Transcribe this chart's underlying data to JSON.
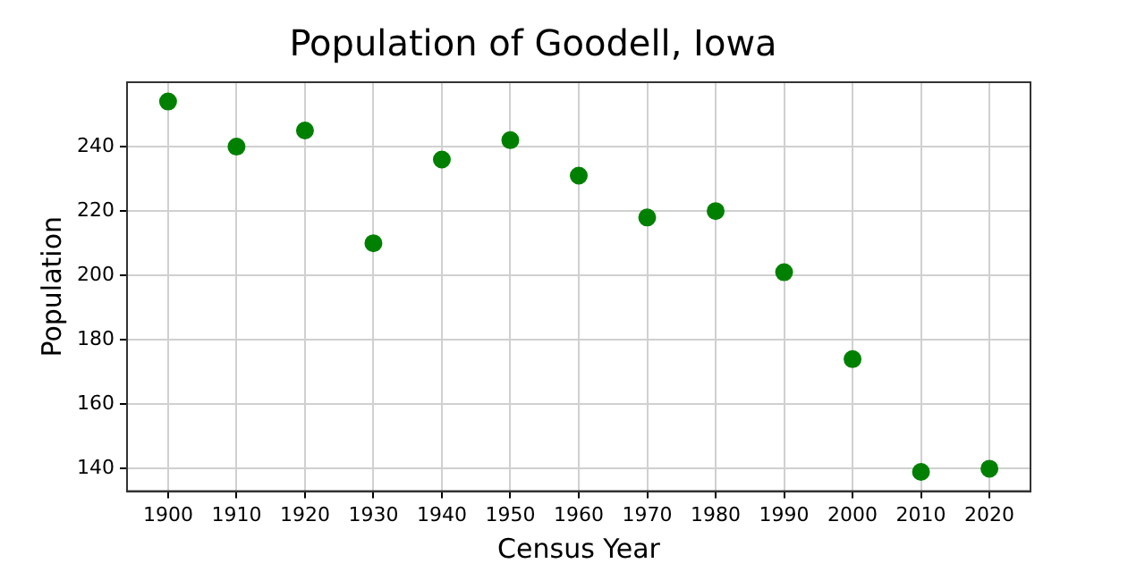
{
  "chart_data": {
    "type": "scatter",
    "title": "Population of Goodell, Iowa",
    "xlabel": "Census Year",
    "ylabel": "Population",
    "x": [
      1900,
      1910,
      1920,
      1930,
      1940,
      1950,
      1960,
      1970,
      1980,
      1990,
      2000,
      2010,
      2020
    ],
    "series": [
      {
        "color": "#008000",
        "values": [
          254,
          240,
          245,
          210,
          236,
          242,
          231,
          218,
          220,
          201,
          174,
          139,
          140
        ]
      }
    ],
    "xlim": [
      1894,
      2026
    ],
    "xticks": [
      1900,
      1910,
      1920,
      1930,
      1940,
      1950,
      1960,
      1970,
      1980,
      1990,
      2000,
      2010,
      2020
    ],
    "ylim": [
      133,
      260
    ],
    "yticks": [
      140,
      160,
      180,
      200,
      220,
      240
    ],
    "grid": true,
    "marker": "circle"
  }
}
